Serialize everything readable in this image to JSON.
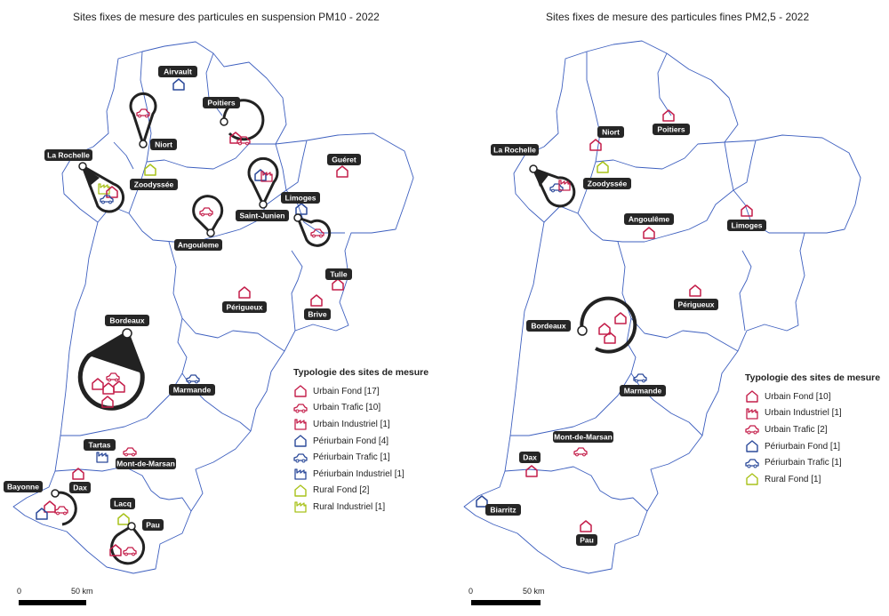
{
  "colors": {
    "urbain": "#c41e4a",
    "periurbain": "#2c4a9a",
    "rural": "#a9c21b",
    "label_bg": "#262626",
    "label_text": "#ffffff",
    "boundary": "#3d5fbf"
  },
  "left_map": {
    "title": "Sites fixes de mesure des particules en suspension PM10 - 2022",
    "cities": [
      {
        "id": "airvault",
        "label": "Airvault"
      },
      {
        "id": "poitiers",
        "label": "Poitiers"
      },
      {
        "id": "niort",
        "label": "Niort"
      },
      {
        "id": "la-rochelle",
        "label": "La Rochelle"
      },
      {
        "id": "zoodyssee",
        "label": "Zoodyssée"
      },
      {
        "id": "gueret",
        "label": "Guéret"
      },
      {
        "id": "limoges",
        "label": "Limoges"
      },
      {
        "id": "saint-junien",
        "label": "Saint-Junien"
      },
      {
        "id": "angouleme",
        "label": "Angouleme"
      },
      {
        "id": "tulle",
        "label": "Tulle"
      },
      {
        "id": "perigueux",
        "label": "Périgueux"
      },
      {
        "id": "brive",
        "label": "Brive"
      },
      {
        "id": "bordeaux",
        "label": "Bordeaux"
      },
      {
        "id": "marmande",
        "label": "Marmande"
      },
      {
        "id": "tartas",
        "label": "Tartas"
      },
      {
        "id": "mont-de-marsan",
        "label": "Mont-de-Marsan"
      },
      {
        "id": "bayonne",
        "label": "Bayonne"
      },
      {
        "id": "dax",
        "label": "Dax"
      },
      {
        "id": "lacq",
        "label": "Lacq"
      },
      {
        "id": "pau",
        "label": "Pau"
      }
    ],
    "legend": {
      "title": "Typologie des sites de mesure",
      "items": [
        {
          "label": "Urbain Fond [17]",
          "icon": "house-icon",
          "color": "urbain"
        },
        {
          "label": "Urbain Trafic [10]",
          "icon": "car-icon",
          "color": "urbain"
        },
        {
          "label": "Urbain Industriel [1]",
          "icon": "factory-icon",
          "color": "urbain"
        },
        {
          "label": "Périurbain Fond [4]",
          "icon": "house-icon",
          "color": "periurbain"
        },
        {
          "label": "Périurbain Trafic [1]",
          "icon": "car-icon",
          "color": "periurbain"
        },
        {
          "label": "Périurbain Industriel [1]",
          "icon": "factory-icon",
          "color": "periurbain"
        },
        {
          "label": "Rural Fond [2]",
          "icon": "house-icon",
          "color": "rural"
        },
        {
          "label": "Rural Industriel [1]",
          "icon": "factory-icon",
          "color": "rural"
        }
      ]
    },
    "scale": {
      "start": "0",
      "end": "50 km"
    }
  },
  "right_map": {
    "title": "Sites fixes de mesure des particules fines PM2,5 - 2022",
    "cities": [
      {
        "id": "niort",
        "label": "Niort"
      },
      {
        "id": "poitiers",
        "label": "Poitiers"
      },
      {
        "id": "la-rochelle",
        "label": "La Rochelle"
      },
      {
        "id": "zoodyssee",
        "label": "Zoodyssée"
      },
      {
        "id": "angouleme",
        "label": "Angoulême"
      },
      {
        "id": "limoges",
        "label": "Limoges"
      },
      {
        "id": "perigueux",
        "label": "Périgueux"
      },
      {
        "id": "bordeaux",
        "label": "Bordeaux"
      },
      {
        "id": "marmande",
        "label": "Marmande"
      },
      {
        "id": "mont-de-marsan",
        "label": "Mont-de-Marsan"
      },
      {
        "id": "dax",
        "label": "Dax"
      },
      {
        "id": "biarritz",
        "label": "Biarritz"
      },
      {
        "id": "pau",
        "label": "Pau"
      }
    ],
    "legend": {
      "title": "Typologie des sites de mesure",
      "items": [
        {
          "label": "Urbain Fond [10]",
          "icon": "house-icon",
          "color": "urbain"
        },
        {
          "label": "Urbain Industriel [1]",
          "icon": "factory-icon",
          "color": "urbain"
        },
        {
          "label": "Urbain Trafic [2]",
          "icon": "car-icon",
          "color": "urbain"
        },
        {
          "label": "Périurbain Fond [1]",
          "icon": "house-icon",
          "color": "periurbain"
        },
        {
          "label": "Périurbain Trafic [1]",
          "icon": "car-icon",
          "color": "periurbain"
        },
        {
          "label": "Rural Fond [1]",
          "icon": "house-icon",
          "color": "rural"
        }
      ]
    },
    "scale": {
      "start": "0",
      "end": "50 km"
    }
  }
}
